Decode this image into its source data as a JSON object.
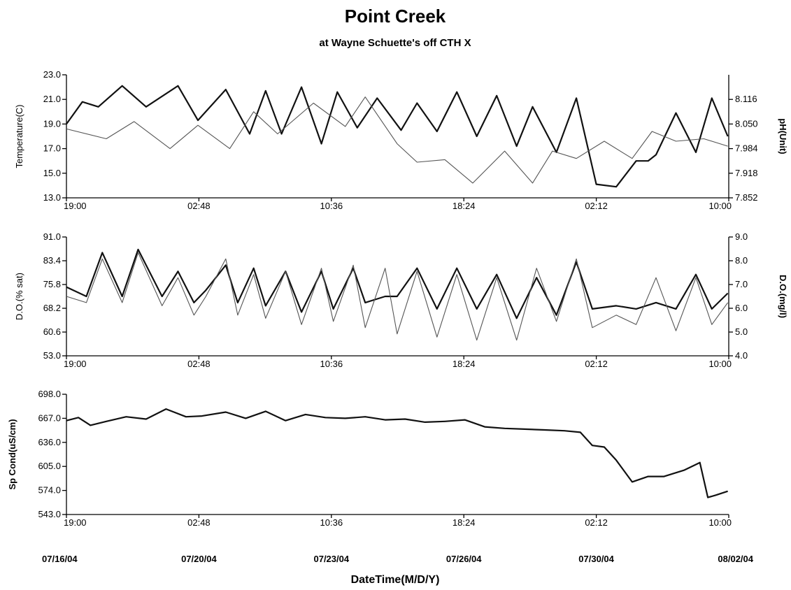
{
  "title": "Point Creek",
  "subtitle": "at Wayne Schuette's off CTH X",
  "xlabel": "DateTime(M/D/Y)",
  "time_ticks": [
    "19:00",
    "02:48",
    "10:36",
    "18:24",
    "02:12",
    "10:00"
  ],
  "date_labels": [
    "07/16/04",
    "07/20/04",
    "07/23/04",
    "07/26/04",
    "07/30/04",
    "08/02/04"
  ],
  "colors": {
    "primary": "#111111",
    "secondary": "#555555"
  },
  "chart_data": [
    {
      "type": "line",
      "x_range": [
        "07/16/04 19:00",
        "08/02/04 10:00"
      ],
      "ylabel_left": "Temperature(C)",
      "ylabel_right": "pH(Unit)",
      "ylim_left": [
        13.0,
        23.0
      ],
      "ylim_right": [
        7.852,
        8.182
      ],
      "yticks_left": [
        "23.0",
        "21.0",
        "19.0",
        "17.0",
        "15.0",
        "13.0"
      ],
      "yticks_right": [
        "8.116",
        "8.050",
        "7.984",
        "7.918",
        "7.852"
      ],
      "series": [
        {
          "axis": "left",
          "style": "bold",
          "x_days": [
            0.0,
            0.4,
            0.8,
            1.4,
            2.0,
            2.8,
            3.3,
            4.0,
            4.6,
            5.0,
            5.4,
            5.9,
            6.4,
            6.8,
            7.3,
            7.8,
            8.4,
            8.8,
            9.3,
            9.8,
            10.3,
            10.8,
            11.3,
            11.7,
            12.3,
            12.8,
            13.3,
            13.8,
            14.3,
            14.6,
            14.8,
            15.3,
            15.8,
            16.2,
            16.6
          ],
          "values": [
            19.0,
            20.8,
            20.4,
            22.1,
            20.4,
            22.1,
            19.3,
            21.8,
            18.2,
            21.7,
            18.2,
            22.0,
            17.4,
            21.6,
            18.7,
            21.1,
            18.5,
            20.7,
            18.4,
            21.6,
            18.0,
            21.3,
            17.2,
            20.4,
            16.7,
            21.1,
            14.1,
            13.9,
            16.0,
            16.0,
            16.5,
            19.9,
            16.7,
            21.1,
            18.0
          ]
        },
        {
          "axis": "left",
          "style": "thin",
          "x_days": [
            0.0,
            1.0,
            1.7,
            2.6,
            3.3,
            4.1,
            4.7,
            5.3,
            6.2,
            7.0,
            7.5,
            8.3,
            8.8,
            9.5,
            10.2,
            11.0,
            11.7,
            12.2,
            12.8,
            13.5,
            14.2,
            14.7,
            15.3,
            16.0,
            16.6
          ],
          "values": [
            18.6,
            17.8,
            19.2,
            17.0,
            18.9,
            17.0,
            20.0,
            18.2,
            20.7,
            18.8,
            21.2,
            17.4,
            15.9,
            16.1,
            14.2,
            16.8,
            14.2,
            16.8,
            16.2,
            17.6,
            16.2,
            18.4,
            17.6,
            17.8,
            17.2
          ]
        }
      ]
    },
    {
      "type": "line",
      "x_range": [
        "07/16/04 19:00",
        "08/02/04 10:00"
      ],
      "ylabel_left": "D.O.(% sat)",
      "ylabel_right": "D.O.(mg/l)",
      "ylim_left": [
        53.0,
        91.0
      ],
      "ylim_right": [
        4.0,
        9.0
      ],
      "yticks_left": [
        "91.0",
        "83.4",
        "75.8",
        "68.2",
        "60.6",
        "53.0"
      ],
      "yticks_right": [
        "9.0",
        "8.0",
        "7.0",
        "6.0",
        "5.0",
        "4.0"
      ],
      "series": [
        {
          "axis": "left",
          "style": "bold",
          "x_days": [
            0.0,
            0.5,
            0.9,
            1.4,
            1.8,
            2.4,
            2.8,
            3.2,
            3.5,
            4.0,
            4.3,
            4.7,
            5.0,
            5.5,
            5.9,
            6.4,
            6.7,
            7.2,
            7.5,
            8.0,
            8.3,
            8.8,
            9.3,
            9.8,
            10.3,
            10.8,
            11.3,
            11.8,
            12.3,
            12.8,
            13.2,
            13.8,
            14.3,
            14.8,
            15.3,
            15.8,
            16.2,
            16.6
          ],
          "values": [
            75.0,
            72.0,
            86.0,
            72.0,
            87.0,
            72.0,
            80.0,
            70.0,
            74.0,
            82.0,
            70.0,
            81.0,
            69.0,
            80.0,
            67.0,
            80.0,
            68.0,
            81.0,
            70.0,
            72.0,
            72.0,
            81.0,
            68.0,
            81.0,
            68.0,
            79.0,
            65.0,
            78.0,
            66.0,
            83.0,
            68.0,
            69.0,
            68.0,
            70.0,
            68.0,
            79.0,
            68.0,
            73.0
          ]
        },
        {
          "axis": "left",
          "style": "thin",
          "x_days": [
            0.0,
            0.5,
            0.9,
            1.4,
            1.8,
            2.4,
            2.8,
            3.2,
            3.5,
            4.0,
            4.3,
            4.7,
            5.0,
            5.5,
            5.9,
            6.4,
            6.7,
            7.2,
            7.5,
            8.0,
            8.3,
            8.8,
            9.3,
            9.8,
            10.3,
            10.8,
            11.3,
            11.8,
            12.3,
            12.8,
            13.2,
            13.8,
            14.3,
            14.8,
            15.3,
            15.8,
            16.2,
            16.6
          ],
          "values": [
            72.0,
            70.0,
            84.0,
            70.0,
            86.0,
            69.0,
            78.0,
            66.0,
            72.0,
            84.0,
            66.0,
            79.0,
            65.0,
            80.0,
            63.0,
            81.0,
            64.0,
            82.0,
            62.0,
            81.0,
            60.0,
            80.0,
            59.0,
            79.0,
            58.0,
            78.0,
            58.0,
            81.0,
            64.0,
            84.0,
            62.0,
            66.0,
            63.0,
            78.0,
            61.0,
            78.0,
            63.0,
            70.0
          ]
        }
      ]
    },
    {
      "type": "line",
      "x_range": [
        "07/16/04 19:00",
        "08/02/04 10:00"
      ],
      "ylabel_left": "Sp Cond(uS/cm)",
      "ylim_left": [
        543.0,
        698.0
      ],
      "yticks_left": [
        "698.0",
        "667.0",
        "636.0",
        "605.0",
        "574.0",
        "543.0"
      ],
      "series": [
        {
          "axis": "left",
          "style": "bold",
          "x_days": [
            0.0,
            0.3,
            0.6,
            1.0,
            1.5,
            2.0,
            2.5,
            3.0,
            3.4,
            4.0,
            4.5,
            5.0,
            5.5,
            6.0,
            6.5,
            7.0,
            7.5,
            8.0,
            8.5,
            9.0,
            9.5,
            10.0,
            10.5,
            11.0,
            11.5,
            12.0,
            12.5,
            12.9,
            13.2,
            13.5,
            13.8,
            14.2,
            14.6,
            15.0,
            15.5,
            15.9,
            16.1,
            16.3,
            16.6
          ],
          "values": [
            664.0,
            668.0,
            658.0,
            663.0,
            669.0,
            666.0,
            679.0,
            669.0,
            670.0,
            675.0,
            667.0,
            676.0,
            664.0,
            672.0,
            668.0,
            667.0,
            669.0,
            665.0,
            666.0,
            662.0,
            663.0,
            665.0,
            656.0,
            654.0,
            653.0,
            652.0,
            651.0,
            649.0,
            632.0,
            630.0,
            613.0,
            585.0,
            592.0,
            592.0,
            600.0,
            610.0,
            565.0,
            568.0,
            573.0
          ]
        }
      ]
    }
  ]
}
